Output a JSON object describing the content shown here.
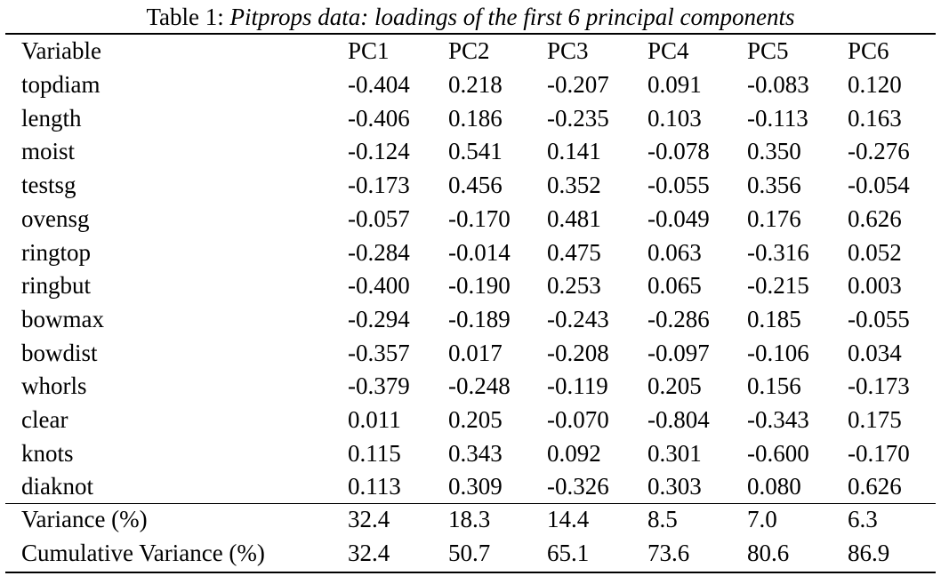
{
  "caption": {
    "label": "Table 1:",
    "text": "Pitprops data: loadings of the first 6 principal components"
  },
  "table": {
    "header": [
      "Variable",
      "PC1",
      "PC2",
      "PC3",
      "PC4",
      "PC5",
      "PC6"
    ],
    "rows": [
      [
        "topdiam",
        "-0.404",
        "0.218",
        "-0.207",
        "0.091",
        "-0.083",
        "0.120"
      ],
      [
        "length",
        "-0.406",
        "0.186",
        "-0.235",
        "0.103",
        "-0.113",
        "0.163"
      ],
      [
        "moist",
        "-0.124",
        "0.541",
        "0.141",
        "-0.078",
        "0.350",
        "-0.276"
      ],
      [
        "testsg",
        "-0.173",
        "0.456",
        "0.352",
        "-0.055",
        "0.356",
        "-0.054"
      ],
      [
        "ovensg",
        "-0.057",
        "-0.170",
        "0.481",
        "-0.049",
        "0.176",
        "0.626"
      ],
      [
        "ringtop",
        "-0.284",
        "-0.014",
        "0.475",
        "0.063",
        "-0.316",
        "0.052"
      ],
      [
        "ringbut",
        "-0.400",
        "-0.190",
        "0.253",
        "0.065",
        "-0.215",
        "0.003"
      ],
      [
        "bowmax",
        "-0.294",
        "-0.189",
        "-0.243",
        "-0.286",
        "0.185",
        "-0.055"
      ],
      [
        "bowdist",
        "-0.357",
        "0.017",
        "-0.208",
        "-0.097",
        "-0.106",
        "0.034"
      ],
      [
        "whorls",
        "-0.379",
        "-0.248",
        "-0.119",
        "0.205",
        "0.156",
        "-0.173"
      ],
      [
        "clear",
        "0.011",
        "0.205",
        "-0.070",
        "-0.804",
        "-0.343",
        "0.175"
      ],
      [
        "knots",
        "0.115",
        "0.343",
        "0.092",
        "0.301",
        "-0.600",
        "-0.170"
      ],
      [
        "diaknot",
        "0.113",
        "0.309",
        "-0.326",
        "0.303",
        "0.080",
        "0.626"
      ]
    ],
    "summary_rows": [
      [
        "Variance (%)",
        "32.4",
        "18.3",
        "14.4",
        "8.5",
        "7.0",
        "6.3"
      ],
      [
        "Cumulative Variance (%)",
        "32.4",
        "50.7",
        "65.1",
        "73.6",
        "80.6",
        "86.9"
      ]
    ]
  }
}
